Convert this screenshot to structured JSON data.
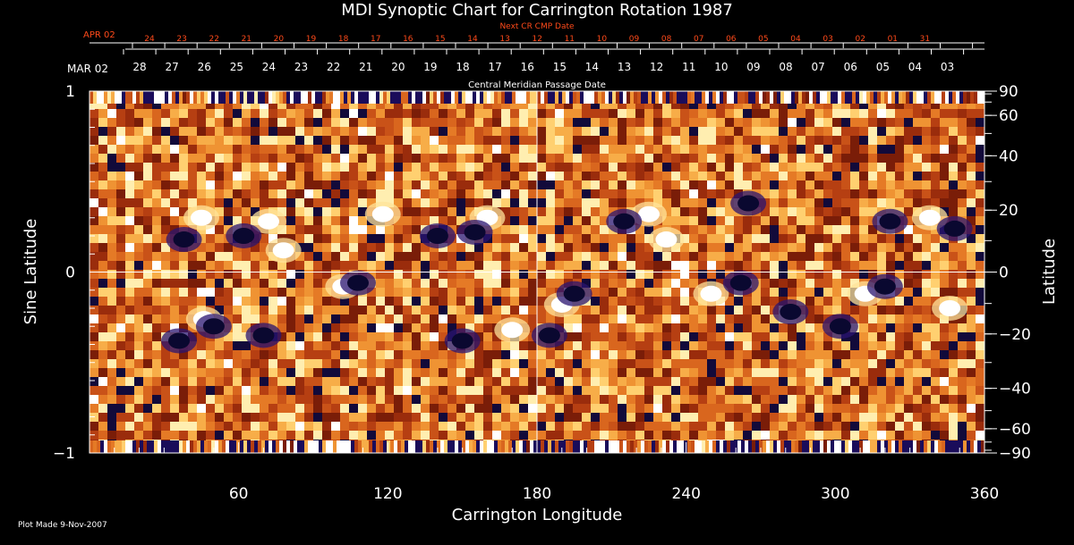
{
  "chart_data": {
    "type": "heatmap",
    "title": "MDI Synoptic Chart for Carrington Rotation 1987",
    "xlabel": "Carrington Longitude",
    "ylabel_left": "Sine Latitude",
    "ylabel_right": "Latitude",
    "xlim": [
      0,
      360
    ],
    "ylim": [
      -1,
      1
    ],
    "x_ticks": [
      60,
      120,
      180,
      240,
      300,
      360
    ],
    "y_ticks_left": [
      {
        "v": 1,
        "label": "1"
      },
      {
        "v": 0,
        "label": "0"
      },
      {
        "v": -1,
        "label": "−1"
      }
    ],
    "y_ticks_right": [
      {
        "deg": 90,
        "label": "90"
      },
      {
        "deg": 60,
        "label": "60"
      },
      {
        "deg": 40,
        "label": "40"
      },
      {
        "deg": 20,
        "label": "20"
      },
      {
        "deg": 0,
        "label": "0"
      },
      {
        "deg": -20,
        "label": "−20"
      },
      {
        "deg": -40,
        "label": "−40"
      },
      {
        "deg": -60,
        "label": "−60"
      },
      {
        "deg": -90,
        "label": "−90"
      }
    ],
    "gridlines": {
      "x": 180,
      "y": 0
    },
    "top_axis": {
      "label": "Central Meridian Passage Date",
      "start_label": "MAR 02",
      "dates": [
        "28",
        "27",
        "26",
        "25",
        "24",
        "23",
        "22",
        "21",
        "20",
        "19",
        "18",
        "17",
        "16",
        "15",
        "14",
        "13",
        "12",
        "11",
        "10",
        "09",
        "08",
        "07",
        "06",
        "05",
        "04",
        "03"
      ]
    },
    "next_cr_axis": {
      "label": "Next CR CMP Date",
      "start_label": "APR 02",
      "dates": [
        "24",
        "23",
        "22",
        "21",
        "20",
        "19",
        "18",
        "17",
        "16",
        "15",
        "14",
        "13",
        "12",
        "11",
        "10",
        "09",
        "08",
        "07",
        "06",
        "05",
        "04",
        "03",
        "02",
        "01",
        "31"
      ]
    },
    "footer": "Plot Made  9-Nov-2007",
    "colors": {
      "background": "#000000",
      "foreground": "#ffffff",
      "next_cr": "#ff4a1a",
      "field_base": "#d0561a",
      "positive": "#ffffff",
      "negative": "#0a0830"
    },
    "active_regions": [
      {
        "lon": 45,
        "sinlat": 0.3,
        "pol": "pos"
      },
      {
        "lon": 38,
        "sinlat": 0.18,
        "pol": "neg"
      },
      {
        "lon": 72,
        "sinlat": 0.28,
        "pol": "pos"
      },
      {
        "lon": 62,
        "sinlat": 0.2,
        "pol": "neg"
      },
      {
        "lon": 78,
        "sinlat": 0.12,
        "pol": "pos"
      },
      {
        "lon": 118,
        "sinlat": 0.32,
        "pol": "pos"
      },
      {
        "lon": 160,
        "sinlat": 0.3,
        "pol": "pos"
      },
      {
        "lon": 155,
        "sinlat": 0.22,
        "pol": "neg"
      },
      {
        "lon": 140,
        "sinlat": 0.2,
        "pol": "neg"
      },
      {
        "lon": 225,
        "sinlat": 0.32,
        "pol": "pos"
      },
      {
        "lon": 232,
        "sinlat": 0.18,
        "pol": "pos"
      },
      {
        "lon": 215,
        "sinlat": 0.28,
        "pol": "neg"
      },
      {
        "lon": 265,
        "sinlat": 0.38,
        "pol": "neg"
      },
      {
        "lon": 322,
        "sinlat": 0.28,
        "pol": "neg"
      },
      {
        "lon": 338,
        "sinlat": 0.3,
        "pol": "pos"
      },
      {
        "lon": 348,
        "sinlat": 0.24,
        "pol": "neg"
      },
      {
        "lon": 46,
        "sinlat": -0.26,
        "pol": "pos"
      },
      {
        "lon": 50,
        "sinlat": -0.3,
        "pol": "neg"
      },
      {
        "lon": 36,
        "sinlat": -0.38,
        "pol": "neg"
      },
      {
        "lon": 70,
        "sinlat": -0.35,
        "pol": "neg"
      },
      {
        "lon": 102,
        "sinlat": -0.08,
        "pol": "pos"
      },
      {
        "lon": 108,
        "sinlat": -0.06,
        "pol": "neg"
      },
      {
        "lon": 150,
        "sinlat": -0.38,
        "pol": "neg"
      },
      {
        "lon": 170,
        "sinlat": -0.32,
        "pol": "pos"
      },
      {
        "lon": 185,
        "sinlat": -0.35,
        "pol": "neg"
      },
      {
        "lon": 190,
        "sinlat": -0.18,
        "pol": "pos"
      },
      {
        "lon": 195,
        "sinlat": -0.12,
        "pol": "neg"
      },
      {
        "lon": 250,
        "sinlat": -0.12,
        "pol": "pos"
      },
      {
        "lon": 262,
        "sinlat": -0.06,
        "pol": "neg"
      },
      {
        "lon": 282,
        "sinlat": -0.22,
        "pol": "neg"
      },
      {
        "lon": 312,
        "sinlat": -0.12,
        "pol": "pos"
      },
      {
        "lon": 320,
        "sinlat": -0.08,
        "pol": "neg"
      },
      {
        "lon": 302,
        "sinlat": -0.3,
        "pol": "neg"
      },
      {
        "lon": 346,
        "sinlat": -0.2,
        "pol": "pos"
      }
    ]
  }
}
